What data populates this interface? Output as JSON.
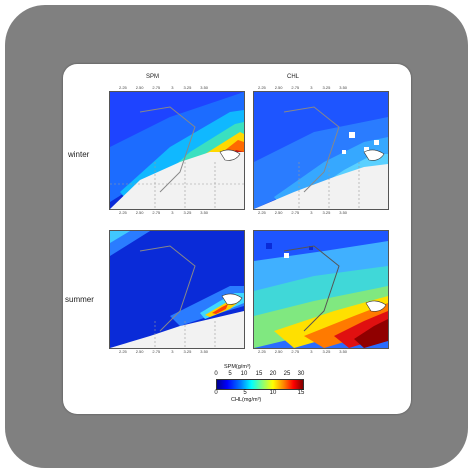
{
  "figure": {
    "columns": [
      "SPM",
      "CHL"
    ],
    "rows": [
      "winter",
      "summer"
    ],
    "top_ticks": [
      "2.25",
      "2.50",
      "2.75",
      "3",
      "3.25",
      "3.50"
    ],
    "left_ticks": [
      "51.75",
      "51.50",
      "51.25",
      "51"
    ],
    "bottom_ticks": [
      "2.25",
      "2.50",
      "2.75",
      "3",
      "3.25",
      "3.50"
    ]
  },
  "colorbar": {
    "spm_label": "SPM(g/m³)",
    "spm_ticks": [
      "0",
      "5",
      "10",
      "15",
      "20",
      "25",
      "30"
    ],
    "chl_label": "CHL(mg/m³)",
    "chl_ticks": [
      "0",
      "5",
      "10",
      "15"
    ],
    "colors": [
      "#00008f",
      "#0000ff",
      "#0080ff",
      "#00ffff",
      "#80ff80",
      "#ffff00",
      "#ff8000",
      "#ff0000",
      "#800000"
    ]
  }
}
